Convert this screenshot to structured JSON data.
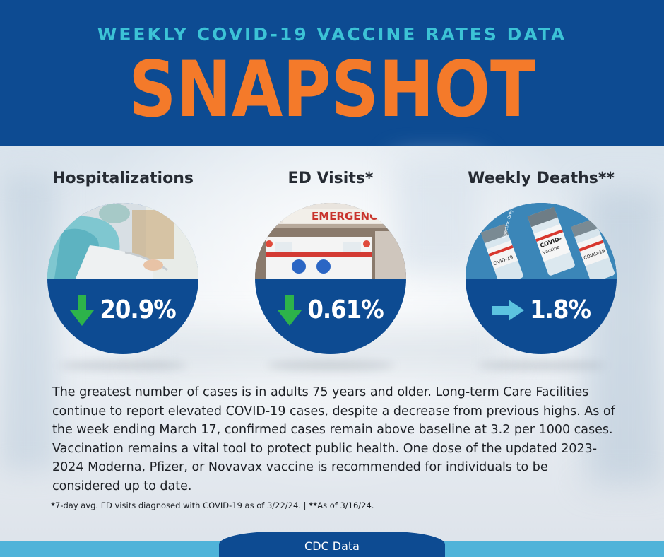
{
  "header": {
    "subtitle": "WEEKLY COVID-19 VACCINE RATES DATA",
    "title": "SNAPSHOT"
  },
  "colors": {
    "navy": "#0d4b92",
    "orange": "#f47a2a",
    "teal": "#3cc3d6",
    "green": "#2db34a",
    "light_blue": "#4fb3d9"
  },
  "stats": [
    {
      "label": "Hospitalizations",
      "value": "20.9%",
      "direction": "down",
      "icon": "arrow-down-icon"
    },
    {
      "label": "ED Visits*",
      "value": "0.61%",
      "direction": "down",
      "icon": "arrow-down-icon"
    },
    {
      "label": "Weekly Deaths**",
      "value": "1.8%",
      "direction": "flat",
      "icon": "arrow-right-icon"
    }
  ],
  "photo_texts": {
    "emergency_sign": "EMERGENC",
    "vial_1": "COVID-",
    "vial_2": "Vaccine",
    "vial_3": "Injection Only",
    "vial_4": "OVID-19",
    "vial_5": "COVID-19"
  },
  "body": "The greatest number of cases is in adults 75 years and older. Long-term Care Facilities continue to report elevated COVID-19 cases, despite a decrease from previous highs. As of the week ending March 17, confirmed cases remain above baseline at 3.2 per 1000 cases. Vaccination remains a vital tool to protect public health. One dose of the updated 2023-2024 Moderna, Pfizer, or Novavax vaccine is recommended for individuals to be considered up to date.",
  "footnote": {
    "part1_mark": "*",
    "part1": "7-day avg. ED visits diagnosed with COVID-19 as of 3/22/24.",
    "separator": " | ",
    "part2_mark": "**",
    "part2": "As of 3/16/24."
  },
  "footer": {
    "label": "CDC Data"
  }
}
